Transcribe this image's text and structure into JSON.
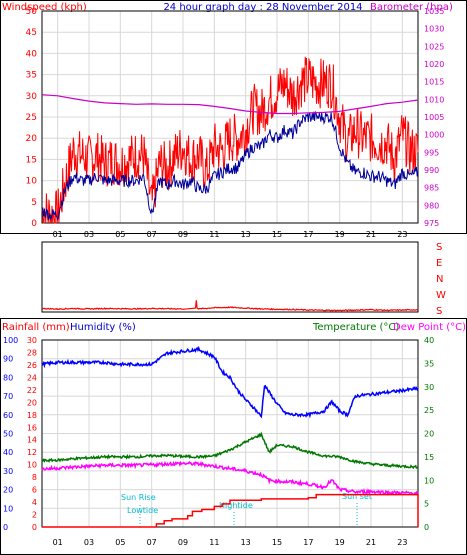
{
  "colors": {
    "rain": "#ff0000",
    "humidity": "#0000ff",
    "windspeed": "#ff0000",
    "barometer": "#cc00cc",
    "avg_wind": "#000099",
    "temperature": "#007700",
    "dewpoint": "#ff00ff",
    "direction": "#ff0000",
    "astro": "#00bbcc",
    "grid": "#d8d8d8",
    "frame": "#000000"
  },
  "header": {
    "left": "Windspeed (kph)",
    "center": "24 hour graph day : 28 November 2014",
    "right": "Barometer (hpa)"
  },
  "lower_header": {
    "rainfall": "Rainfall (mm)",
    "humidity": "Humidity (%)",
    "temperature": "Temperature (°C)",
    "dewpoint": "Dew Point (°C)"
  },
  "x_axis": {
    "ticks": [
      "01",
      "03",
      "05",
      "07",
      "09",
      "11",
      "13",
      "15",
      "17",
      "19",
      "21",
      "23"
    ]
  },
  "direction_panel": {
    "labels": [
      "S",
      "E",
      "N",
      "W",
      "S"
    ]
  },
  "annotations": {
    "sunrise": "Sun Rise",
    "lowtide": "Lowtide",
    "hightide": "Hightide",
    "sunset": "Sun set"
  },
  "chart_data": [
    {
      "type": "line",
      "title": "24 hour graph day : 28 November 2014",
      "ylabel": "Windspeed (kph)",
      "ylabel_right": "Barometer (hpa)",
      "x_unit": "hour",
      "xlim": [
        0,
        24
      ],
      "ylim": [
        0,
        50
      ],
      "ylim_right": [
        975,
        1035
      ],
      "yticks": [
        0,
        5,
        10,
        15,
        20,
        25,
        30,
        35,
        40,
        45,
        50
      ],
      "yticks_right": [
        975,
        980,
        985,
        990,
        995,
        1000,
        1005,
        1010,
        1015,
        1020,
        1025,
        1030,
        1035
      ],
      "grid": true,
      "series": [
        {
          "name": "Windspeed (kph)",
          "axis": "left",
          "x": [
            0,
            0.5,
            1,
            1.5,
            2,
            2.5,
            3,
            3.5,
            4,
            4.5,
            5,
            5.5,
            6,
            6.5,
            7,
            7.5,
            8,
            8.5,
            9,
            9.5,
            10,
            10.5,
            11,
            11.5,
            12,
            12.5,
            13,
            13.5,
            14,
            14.5,
            15,
            15.5,
            16,
            16.5,
            17,
            17.5,
            18,
            18.5,
            19,
            19.5,
            20,
            20.5,
            21,
            21.5,
            22,
            22.5,
            23,
            23.5,
            24
          ],
          "values": [
            3,
            2,
            2,
            10,
            17,
            16,
            15,
            16,
            14,
            15,
            14,
            15,
            16,
            16,
            4,
            14,
            13,
            16,
            18,
            15,
            16,
            12,
            18,
            17,
            20,
            20,
            22,
            27,
            26,
            29,
            31,
            33,
            30,
            33,
            34,
            33,
            33,
            33,
            25,
            19,
            22,
            20,
            20,
            19,
            19,
            15,
            21,
            17,
            17
          ]
        },
        {
          "name": "Average windspeed (kph)",
          "axis": "left",
          "x": [
            0,
            0.5,
            1,
            1.5,
            2,
            2.5,
            3,
            3.5,
            4,
            4.5,
            5,
            5.5,
            6,
            6.5,
            7,
            7.5,
            8,
            8.5,
            9,
            9.5,
            10,
            10.5,
            11,
            11.5,
            12,
            12.5,
            13,
            13.5,
            14,
            14.5,
            15,
            15.5,
            16,
            16.5,
            17,
            17.5,
            18,
            18.5,
            19,
            19.5,
            20,
            20.5,
            21,
            21.5,
            22,
            22.5,
            23,
            23.5,
            24
          ],
          "values": [
            3,
            2,
            2,
            8,
            11,
            10,
            10,
            11,
            10,
            10,
            10,
            10,
            10,
            11,
            2,
            10,
            9,
            10,
            9,
            10,
            8,
            8,
            11,
            12,
            13,
            13,
            16,
            18,
            18,
            21,
            20,
            22,
            21,
            24,
            25,
            25,
            25,
            25,
            18,
            14,
            12,
            12,
            11,
            11,
            10,
            9,
            12,
            11,
            12
          ]
        },
        {
          "name": "Barometer (hpa)",
          "axis": "right",
          "x": [
            0,
            1,
            2,
            3,
            4,
            5,
            6,
            7,
            8,
            9,
            10,
            11,
            12,
            13,
            14,
            15,
            16,
            17,
            18,
            19,
            20,
            21,
            22,
            23,
            24
          ],
          "values": [
            1011.3,
            1011.0,
            1010.2,
            1009.5,
            1009.0,
            1008.8,
            1008.6,
            1008.7,
            1008.6,
            1008.6,
            1008.5,
            1008.0,
            1007.4,
            1006.7,
            1006.3,
            1006.0,
            1006.0,
            1006.2,
            1006.3,
            1006.6,
            1007.3,
            1008.0,
            1008.8,
            1009.2,
            1009.8
          ]
        }
      ]
    },
    {
      "type": "line",
      "ylabel": "Wind direction",
      "ytick_labels": [
        "S",
        "E",
        "N",
        "W",
        "S"
      ],
      "ylim": [
        0,
        360
      ],
      "xlim": [
        0,
        24
      ],
      "series": [
        {
          "name": "Wind direction (deg)",
          "x": [
            0,
            1,
            2,
            3,
            4,
            5,
            6,
            7,
            8,
            9,
            9.8,
            9.85,
            9.9,
            10,
            11,
            12,
            13,
            14,
            15,
            16,
            17,
            18,
            19,
            20,
            21,
            22,
            23,
            24
          ],
          "values": [
            18,
            15,
            18,
            16,
            18,
            17,
            16,
            18,
            17,
            16,
            20,
            60,
            20,
            16,
            22,
            24,
            20,
            16,
            14,
            13,
            10,
            9,
            8,
            10,
            12,
            9,
            10,
            12
          ]
        }
      ]
    },
    {
      "type": "line",
      "ylabel": "Rainfall (mm)",
      "ylabel_2": "Humidity (%)",
      "ylabel_right": "Temperature (°C)",
      "ylabel_right_2": "Dew Point (°C)",
      "xlim": [
        0,
        24
      ],
      "ylim_rain": [
        0,
        30
      ],
      "ylim_humidity": [
        0,
        100
      ],
      "ylim_temp": [
        0,
        40
      ],
      "yticks_rain": [
        0,
        2,
        4,
        6,
        8,
        10,
        12,
        14,
        16,
        18,
        20,
        22,
        24,
        26,
        28,
        30
      ],
      "yticks_humidity": [
        0,
        10,
        20,
        30,
        40,
        50,
        60,
        70,
        80,
        90,
        100
      ],
      "yticks_temp": [
        0,
        5,
        10,
        15,
        20,
        25,
        30,
        35,
        40
      ],
      "grid": true,
      "series": [
        {
          "name": "Humidity (%)",
          "axis": "humidity",
          "x": [
            0,
            1,
            2,
            3,
            4,
            5,
            6,
            7,
            8,
            9,
            10,
            11,
            11.5,
            12,
            12.5,
            13,
            13.5,
            14,
            14.2,
            14.5,
            15,
            15.5,
            16,
            17,
            18,
            18.5,
            19,
            19.5,
            20,
            21,
            22,
            23,
            24
          ],
          "values": [
            87,
            88,
            88,
            88,
            88,
            87,
            87,
            87,
            93,
            94,
            95,
            91,
            83,
            80,
            73,
            68,
            64,
            59,
            76,
            72,
            66,
            61,
            60,
            60,
            62,
            67,
            62,
            60,
            70,
            71,
            72,
            73,
            74
          ]
        },
        {
          "name": "Temperature (°C)",
          "axis": "temp",
          "x": [
            0,
            1,
            2,
            3,
            4,
            5,
            6,
            7,
            8,
            9,
            10,
            11,
            12,
            13,
            14,
            14.5,
            15,
            16,
            17,
            18,
            19,
            20,
            21,
            22,
            23,
            24
          ],
          "values": [
            14.2,
            14.3,
            14.6,
            14.8,
            15.0,
            15.0,
            15.0,
            15.2,
            15.3,
            15.1,
            15.0,
            15.2,
            16.5,
            18.2,
            19.8,
            16.0,
            17.5,
            17.2,
            16.0,
            15.2,
            15.0,
            14.0,
            13.5,
            13.2,
            13.0,
            12.8
          ]
        },
        {
          "name": "Dew Point (°C)",
          "axis": "temp",
          "x": [
            0,
            1,
            2,
            3,
            4,
            5,
            6,
            7,
            8,
            9,
            10,
            11,
            12,
            13,
            14,
            14.5,
            15,
            16,
            17,
            18,
            18.5,
            19,
            20,
            21,
            22,
            23,
            24
          ],
          "values": [
            12.4,
            12.6,
            12.8,
            13.0,
            13.2,
            13.2,
            13.2,
            13.3,
            13.5,
            13.6,
            13.5,
            13.0,
            12.5,
            12.0,
            11.2,
            10.0,
            9.8,
            9.6,
            9.2,
            8.5,
            10.0,
            8.0,
            7.5,
            7.6,
            7.4,
            7.3,
            7.2
          ]
        },
        {
          "name": "Rainfall (mm)",
          "axis": "rain",
          "x": [
            0,
            7,
            7.3,
            7.8,
            8.3,
            9.3,
            9.6,
            10.2,
            11.0,
            11.5,
            12,
            13,
            14,
            16,
            17,
            17.5,
            23.9,
            24
          ],
          "values": [
            0,
            0,
            0.5,
            1.0,
            1.3,
            1.8,
            2.5,
            2.8,
            3.3,
            3.7,
            4.3,
            4.3,
            4.5,
            4.5,
            4.7,
            5.2,
            5.2,
            0
          ]
        }
      ]
    }
  ]
}
